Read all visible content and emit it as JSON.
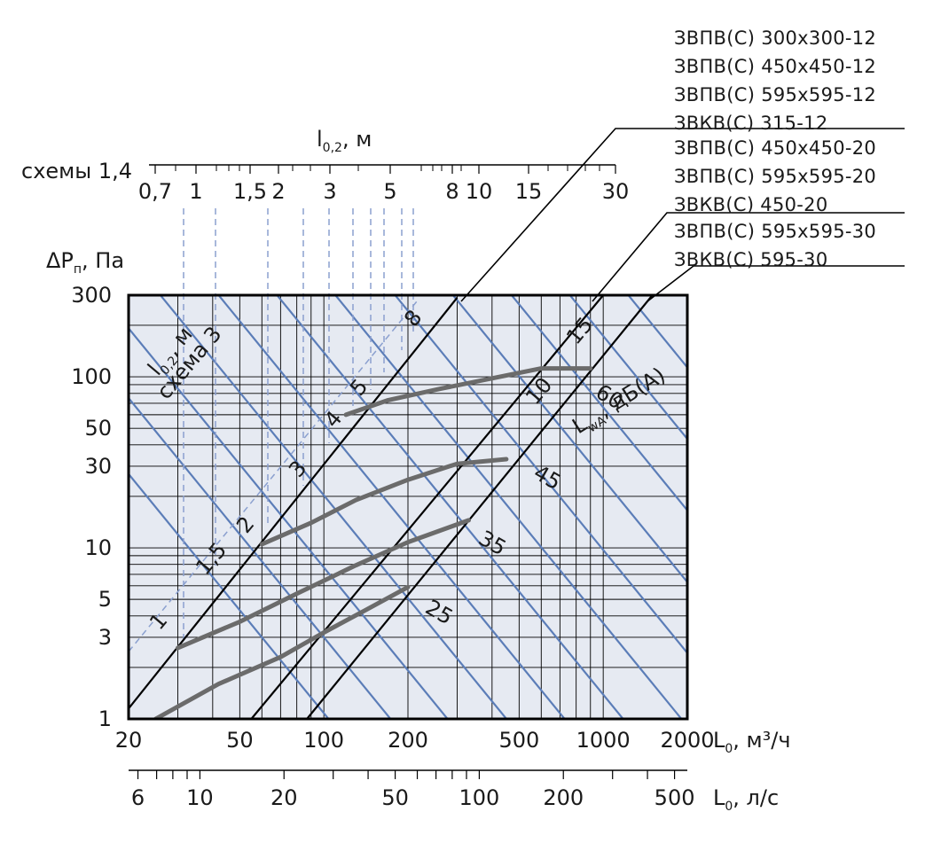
{
  "chart_data": {
    "type": "line",
    "scale": "log-log",
    "grid": true,
    "background_color": "#e6eaf2",
    "colors": {
      "lwa_lines": "#5b7db8",
      "duct_lines": "#000000",
      "noise_curves": "#6b6b6b",
      "throw_dashed": "#8ba0cf"
    },
    "x_axis": {
      "label_main": "L",
      "label_sub": "0",
      "label_unit": ", м³/ч",
      "range": [
        20,
        2000
      ],
      "tick_labels": [
        {
          "v": 20,
          "t": "20"
        },
        {
          "v": 50,
          "t": "50"
        },
        {
          "v": 100,
          "t": "100"
        },
        {
          "v": 200,
          "t": "200"
        },
        {
          "v": 500,
          "t": "500"
        },
        {
          "v": 1000,
          "t": "1000"
        },
        {
          "v": 2000,
          "t": "2000"
        }
      ]
    },
    "x2_axis": {
      "label_main": "L",
      "label_sub": "0",
      "label_unit": ", л/с",
      "tick_labels": [
        {
          "v": 6,
          "t": "6"
        },
        {
          "v": 10,
          "t": "10"
        },
        {
          "v": 20,
          "t": "20"
        },
        {
          "v": 50,
          "t": "50"
        },
        {
          "v": 100,
          "t": "100"
        },
        {
          "v": 200,
          "t": "200"
        },
        {
          "v": 500,
          "t": "500"
        }
      ]
    },
    "y_axis": {
      "label_main": "ΔP",
      "label_sub": "п",
      "label_unit": ", Па",
      "range": [
        1,
        300
      ],
      "tick_labels": [
        {
          "v": 1,
          "t": "1"
        },
        {
          "v": 3,
          "t": "3"
        },
        {
          "v": 5,
          "t": "5"
        },
        {
          "v": 10,
          "t": "10"
        },
        {
          "v": 30,
          "t": "30"
        },
        {
          "v": 50,
          "t": "50"
        },
        {
          "v": 100,
          "t": "100"
        },
        {
          "v": 300,
          "t": "300"
        }
      ]
    },
    "top_axis": {
      "prefix": "схемы 1,4",
      "label_main": "l",
      "label_sub": "0,2",
      "label_unit": ", м",
      "tick_labels": [
        "0,7",
        "1",
        "1,5",
        "2",
        "3",
        "5",
        "8",
        "10",
        "15",
        "30"
      ]
    },
    "duct_lines": [
      {
        "name": "1",
        "points": [
          [
            20,
            1.15
          ],
          [
            300,
            290
          ]
        ]
      },
      {
        "name": "2",
        "points": [
          [
            55,
            1.0
          ],
          [
            1000,
            300
          ]
        ]
      },
      {
        "name": "3",
        "points": [
          [
            87,
            1.0
          ],
          [
            1500,
            300
          ]
        ]
      }
    ],
    "legend_groups": [
      [
        "ЗВПВ(С) 300х300-12",
        "ЗВПВ(С) 450х450-12",
        "ЗВПВ(С) 595х595-12",
        "ЗВКВ(С) 315-12"
      ],
      [
        "ЗВПВ(С) 450х450-20",
        "ЗВПВ(С) 595х595-20",
        "ЗВКВ(С) 450-20"
      ],
      [
        "ЗВПВ(С) 595х595-30",
        "ЗВКВ(С) 595-30"
      ]
    ],
    "noise_series": [
      {
        "name": "25",
        "points": [
          [
            25,
            1.0
          ],
          [
            42,
            1.6
          ],
          [
            70,
            2.3
          ],
          [
            100,
            3.2
          ],
          [
            140,
            4.3
          ],
          [
            200,
            5.9
          ]
        ]
      },
      {
        "name": "35",
        "points": [
          [
            30,
            2.6
          ],
          [
            50,
            3.7
          ],
          [
            80,
            5.4
          ],
          [
            130,
            7.9
          ],
          [
            200,
            10.8
          ],
          [
            330,
            14.5
          ]
        ]
      },
      {
        "name": "45",
        "points": [
          [
            60,
            10.5
          ],
          [
            90,
            14.0
          ],
          [
            130,
            19.0
          ],
          [
            200,
            25.0
          ],
          [
            300,
            31.0
          ],
          [
            450,
            33.0
          ]
        ]
      },
      {
        "name": "60",
        "points": [
          [
            120,
            60
          ],
          [
            170,
            73
          ],
          [
            260,
            85
          ],
          [
            400,
            98
          ],
          [
            600,
            112
          ],
          [
            900,
            112
          ]
        ]
      }
    ],
    "lwa_label": {
      "main": "L",
      "sub": "wA",
      "unit": ", дБ(А)"
    },
    "throw_label": {
      "main": "l",
      "sub": "0,2",
      "unit": ", м",
      "schema": "схема 3"
    },
    "throw_values": [
      "1",
      "1,5",
      "2",
      "3",
      "4",
      "5",
      "8",
      "10",
      "15"
    ]
  }
}
